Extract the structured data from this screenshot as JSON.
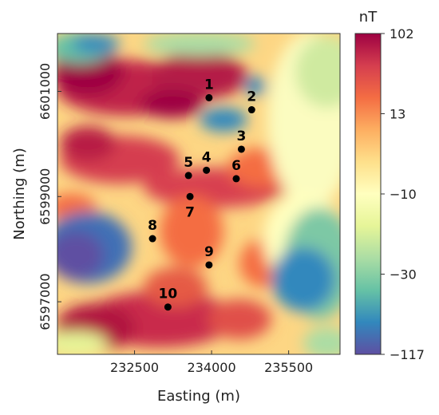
{
  "chart_data": {
    "type": "heatmap",
    "title": "",
    "xlabel": "Easting (m)",
    "ylabel": "Northing (m)",
    "xlim": [
      231000,
      236500
    ],
    "ylim": [
      6596000,
      6602100
    ],
    "x_ticks": [
      "232500",
      "234000",
      "235500"
    ],
    "y_ticks": [
      "6597000",
      "6599000",
      "6601000"
    ],
    "colorbar": {
      "label": "nT",
      "ticks": [
        "102",
        "13",
        "−10",
        "−30",
        "−117"
      ],
      "colors": [
        "#9e0142",
        "#d53e4f",
        "#f46d43",
        "#fdae61",
        "#fee08b",
        "#ffffbf",
        "#e6f598",
        "#abdda4",
        "#66c2a5",
        "#3288bd",
        "#5e4fa2"
      ]
    },
    "points": [
      {
        "label": "1",
        "x": 233950,
        "y": 6600880
      },
      {
        "label": "2",
        "x": 234780,
        "y": 6600650
      },
      {
        "label": "3",
        "x": 234580,
        "y": 6599900
      },
      {
        "label": "4",
        "x": 233900,
        "y": 6599500
      },
      {
        "label": "5",
        "x": 233550,
        "y": 6599400
      },
      {
        "label": "6",
        "x": 234480,
        "y": 6599340
      },
      {
        "label": "7",
        "x": 233580,
        "y": 6599000
      },
      {
        "label": "8",
        "x": 232850,
        "y": 6598200
      },
      {
        "label": "9",
        "x": 233950,
        "y": 6597700
      },
      {
        "label": "10",
        "x": 233150,
        "y": 6596900
      }
    ]
  }
}
